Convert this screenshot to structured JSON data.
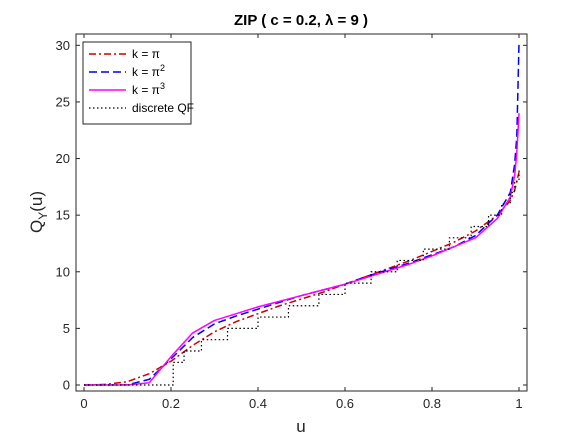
{
  "chart_data": {
    "type": "line",
    "title": "ZIP ( c = 0.2, λ = 9 )",
    "xlabel": "u",
    "ylabel": "Q",
    "ylabel_sub": "Y",
    "ylabel_suffix": "(u)",
    "xlim": [
      0,
      1
    ],
    "ylim": [
      0,
      31
    ],
    "xticks": [
      0,
      0.2,
      0.4,
      0.6,
      0.8,
      1
    ],
    "xtick_labels": [
      "0",
      "0.2",
      "0.4",
      "0.6",
      "0.8",
      "1"
    ],
    "yticks": [
      0,
      5,
      10,
      15,
      20,
      25,
      30
    ],
    "ytick_labels": [
      "0",
      "5",
      "10",
      "15",
      "20",
      "25",
      "30"
    ],
    "grid": false,
    "legend_position": "top-left",
    "series": [
      {
        "name": "k = π",
        "label_base": "k = π",
        "label_sup": "",
        "color": "#cc0000",
        "dash": "dashdot",
        "x": [
          0,
          0.05,
          0.1,
          0.15,
          0.2,
          0.25,
          0.3,
          0.35,
          0.4,
          0.45,
          0.5,
          0.55,
          0.6,
          0.65,
          0.7,
          0.75,
          0.8,
          0.85,
          0.9,
          0.95,
          0.98,
          0.99,
          1
        ],
        "y": [
          0,
          0.05,
          0.3,
          1.0,
          2.1,
          3.5,
          4.7,
          5.6,
          6.3,
          7.0,
          7.6,
          8.2,
          8.9,
          9.6,
          10.3,
          11.0,
          11.8,
          12.6,
          13.6,
          15.0,
          16.3,
          17.2,
          18.8
        ]
      },
      {
        "name": "k = π^2",
        "label_base": "k = π",
        "label_sup": "2",
        "color": "#0000ee",
        "dash": "dashed",
        "x": [
          0,
          0.05,
          0.1,
          0.15,
          0.2,
          0.25,
          0.3,
          0.35,
          0.4,
          0.45,
          0.5,
          0.55,
          0.6,
          0.65,
          0.7,
          0.75,
          0.8,
          0.85,
          0.9,
          0.95,
          0.98,
          0.99,
          0.995,
          1
        ],
        "y": [
          0,
          0,
          0.02,
          0.5,
          2.3,
          4.2,
          5.4,
          6.1,
          6.7,
          7.3,
          7.9,
          8.4,
          8.9,
          9.6,
          10.2,
          10.8,
          11.5,
          12.2,
          13.2,
          15.0,
          17.0,
          19.5,
          22.0,
          30.2
        ]
      },
      {
        "name": "k = π^3",
        "label_base": "k = π",
        "label_sup": "3",
        "color": "#ff00ff",
        "dash": "solid",
        "x": [
          0,
          0.05,
          0.1,
          0.15,
          0.2,
          0.25,
          0.3,
          0.35,
          0.4,
          0.45,
          0.5,
          0.55,
          0.6,
          0.65,
          0.7,
          0.75,
          0.8,
          0.85,
          0.9,
          0.95,
          0.98,
          0.99,
          0.995,
          1
        ],
        "y": [
          0,
          0,
          0,
          0.2,
          2.5,
          4.6,
          5.7,
          6.3,
          6.9,
          7.4,
          7.9,
          8.4,
          8.9,
          9.5,
          10.1,
          10.7,
          11.4,
          12.2,
          13.0,
          14.7,
          16.6,
          18.5,
          20.5,
          24.0
        ]
      },
      {
        "name": "discrete QF",
        "label_base": "discrete QF",
        "label_sup": "",
        "color": "#000000",
        "dash": "dotted",
        "step": true,
        "x": [
          0,
          0.2,
          0.205,
          0.23,
          0.27,
          0.33,
          0.4,
          0.47,
          0.54,
          0.6,
          0.66,
          0.72,
          0.78,
          0.84,
          0.89,
          0.93,
          0.96,
          0.98,
          0.99,
          1
        ],
        "y": [
          0,
          0,
          2,
          3,
          4,
          5,
          6,
          7,
          8,
          9,
          10,
          11,
          12,
          13,
          14,
          15,
          16,
          17,
          18,
          19
        ]
      }
    ]
  }
}
